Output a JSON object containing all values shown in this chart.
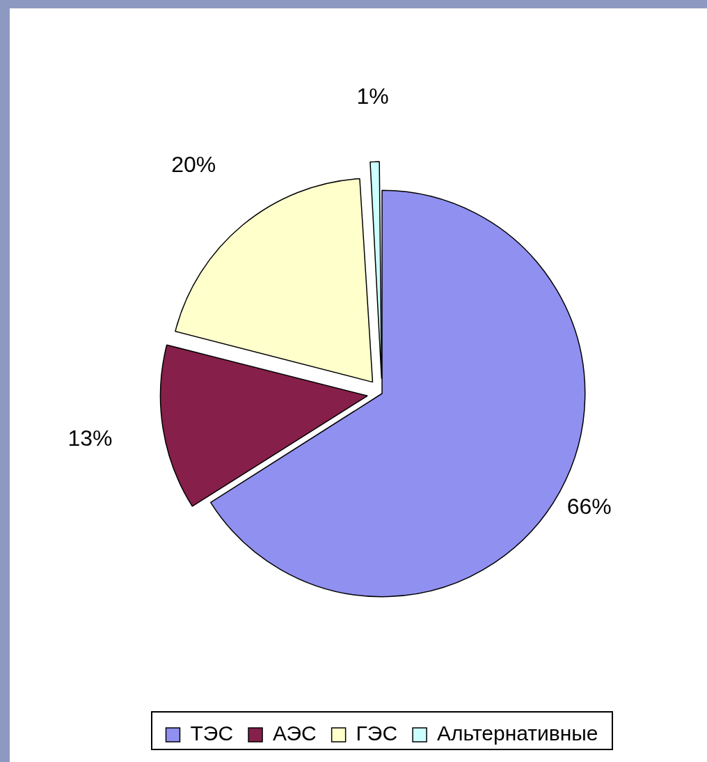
{
  "chart_data": {
    "type": "pie",
    "categories": [
      "ТЭС",
      "АЭС",
      "ГЭС",
      "Альтернативные"
    ],
    "values": [
      66,
      13,
      20,
      1
    ],
    "colors": [
      "#9090f0",
      "#861f4a",
      "#ffffcc",
      "#ccffff"
    ],
    "value_labels": [
      "66%",
      "13%",
      "20%",
      "1%"
    ],
    "legend": "bottom"
  }
}
